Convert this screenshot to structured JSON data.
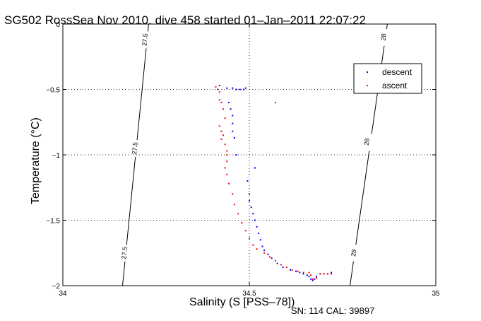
{
  "chart_data": {
    "type": "scatter",
    "title": "SG502 RossSea Nov 2010, dive 458 started 01–Jan–2011 22:07:22",
    "xlabel": "Salinity (S [PSS–78])",
    "ylabel": "Temperature (°C)",
    "xlim": [
      34,
      35
    ],
    "ylim": [
      -2,
      0
    ],
    "y_reversed": true,
    "grid": true,
    "legend_position": "top-right",
    "x_ticks": [
      {
        "value": 34,
        "label": "34"
      },
      {
        "value": 34.5,
        "label": "34.5"
      },
      {
        "value": 35,
        "label": "35"
      }
    ],
    "y_ticks": [
      {
        "value": 0,
        "label": "0"
      },
      {
        "value": -0.5,
        "label": "−0.5"
      },
      {
        "value": -1,
        "label": "−1"
      },
      {
        "value": -1.5,
        "label": "−1.5"
      },
      {
        "value": -2,
        "label": "−2"
      }
    ],
    "series": [
      {
        "name": "descent",
        "color": "#0000ff",
        "marker": "dot",
        "points": [
          [
            34.42,
            -0.47
          ],
          [
            34.44,
            -0.49
          ],
          [
            34.455,
            -0.49
          ],
          [
            34.465,
            -0.5
          ],
          [
            34.475,
            -0.5
          ],
          [
            34.485,
            -0.5
          ],
          [
            34.49,
            -0.49
          ],
          [
            34.445,
            -0.6
          ],
          [
            34.45,
            -0.65
          ],
          [
            34.455,
            -0.7
          ],
          [
            34.455,
            -0.76
          ],
          [
            34.455,
            -0.82
          ],
          [
            34.46,
            -0.87
          ],
          [
            34.465,
            -1.0
          ],
          [
            34.515,
            -1.1
          ],
          [
            34.495,
            -1.2
          ],
          [
            34.5,
            -1.3
          ],
          [
            34.5,
            -1.35
          ],
          [
            34.505,
            -1.4
          ],
          [
            34.51,
            -1.45
          ],
          [
            34.515,
            -1.5
          ],
          [
            34.52,
            -1.55
          ],
          [
            34.525,
            -1.6
          ],
          [
            34.53,
            -1.65
          ],
          [
            34.535,
            -1.7
          ],
          [
            34.54,
            -1.73
          ],
          [
            34.55,
            -1.76
          ],
          [
            34.56,
            -1.79
          ],
          [
            34.575,
            -1.83
          ],
          [
            34.59,
            -1.86
          ],
          [
            34.61,
            -1.88
          ],
          [
            34.625,
            -1.89
          ],
          [
            34.635,
            -1.9
          ],
          [
            34.645,
            -1.91
          ],
          [
            34.655,
            -1.92
          ],
          [
            34.66,
            -1.93
          ],
          [
            34.665,
            -1.95
          ],
          [
            34.67,
            -1.96
          ],
          [
            34.675,
            -1.95
          ],
          [
            34.68,
            -1.93
          ],
          [
            34.69,
            -1.91
          ],
          [
            34.7,
            -1.91
          ],
          [
            34.71,
            -1.91
          ],
          [
            34.72,
            -1.9
          ]
        ]
      },
      {
        "name": "ascent",
        "color": "#ff0000",
        "marker": "dot",
        "points": [
          [
            34.41,
            -0.48
          ],
          [
            34.415,
            -0.5
          ],
          [
            34.42,
            -0.52
          ],
          [
            34.42,
            -0.58
          ],
          [
            34.425,
            -0.6
          ],
          [
            34.57,
            -0.6
          ],
          [
            34.43,
            -0.65
          ],
          [
            34.435,
            -0.72
          ],
          [
            34.42,
            -0.78
          ],
          [
            34.425,
            -0.82
          ],
          [
            34.43,
            -0.85
          ],
          [
            34.425,
            -0.88
          ],
          [
            34.435,
            -0.92
          ],
          [
            34.44,
            -0.97
          ],
          [
            34.44,
            -1.0
          ],
          [
            34.44,
            -1.05
          ],
          [
            34.435,
            -1.1
          ],
          [
            34.44,
            -1.15
          ],
          [
            34.445,
            -1.22
          ],
          [
            34.455,
            -1.3
          ],
          [
            34.46,
            -1.38
          ],
          [
            34.47,
            -1.45
          ],
          [
            34.48,
            -1.52
          ],
          [
            34.49,
            -1.58
          ],
          [
            34.5,
            -1.64
          ],
          [
            34.51,
            -1.69
          ],
          [
            34.52,
            -1.72
          ],
          [
            34.54,
            -1.75
          ],
          [
            34.555,
            -1.78
          ],
          [
            34.57,
            -1.81
          ],
          [
            34.585,
            -1.84
          ],
          [
            34.6,
            -1.86
          ],
          [
            34.615,
            -1.88
          ],
          [
            34.63,
            -1.89
          ],
          [
            34.645,
            -1.9
          ],
          [
            34.66,
            -1.9
          ],
          [
            34.665,
            -1.92
          ],
          [
            34.67,
            -1.95
          ],
          [
            34.68,
            -1.94
          ],
          [
            34.69,
            -1.91
          ],
          [
            34.7,
            -1.91
          ],
          [
            34.71,
            -1.91
          ],
          [
            34.72,
            -1.91
          ]
        ]
      }
    ],
    "density_contours": [
      {
        "label": "27.5",
        "points": [
          [
            34.16,
            -2
          ],
          [
            34.23,
            0
          ]
        ],
        "label_positions": [
          [
            34.165,
            -1.75
          ],
          [
            34.193,
            -0.95
          ],
          [
            34.22,
            -0.12
          ]
        ]
      },
      {
        "label": "28",
        "points": [
          [
            34.77,
            -2
          ],
          [
            34.87,
            0
          ]
        ],
        "label_positions": [
          [
            34.78,
            -1.75
          ],
          [
            34.815,
            -0.9
          ],
          [
            34.86,
            -0.1
          ]
        ]
      }
    ]
  },
  "footer": {
    "serial": "SN: 114  CAL: 39897"
  }
}
